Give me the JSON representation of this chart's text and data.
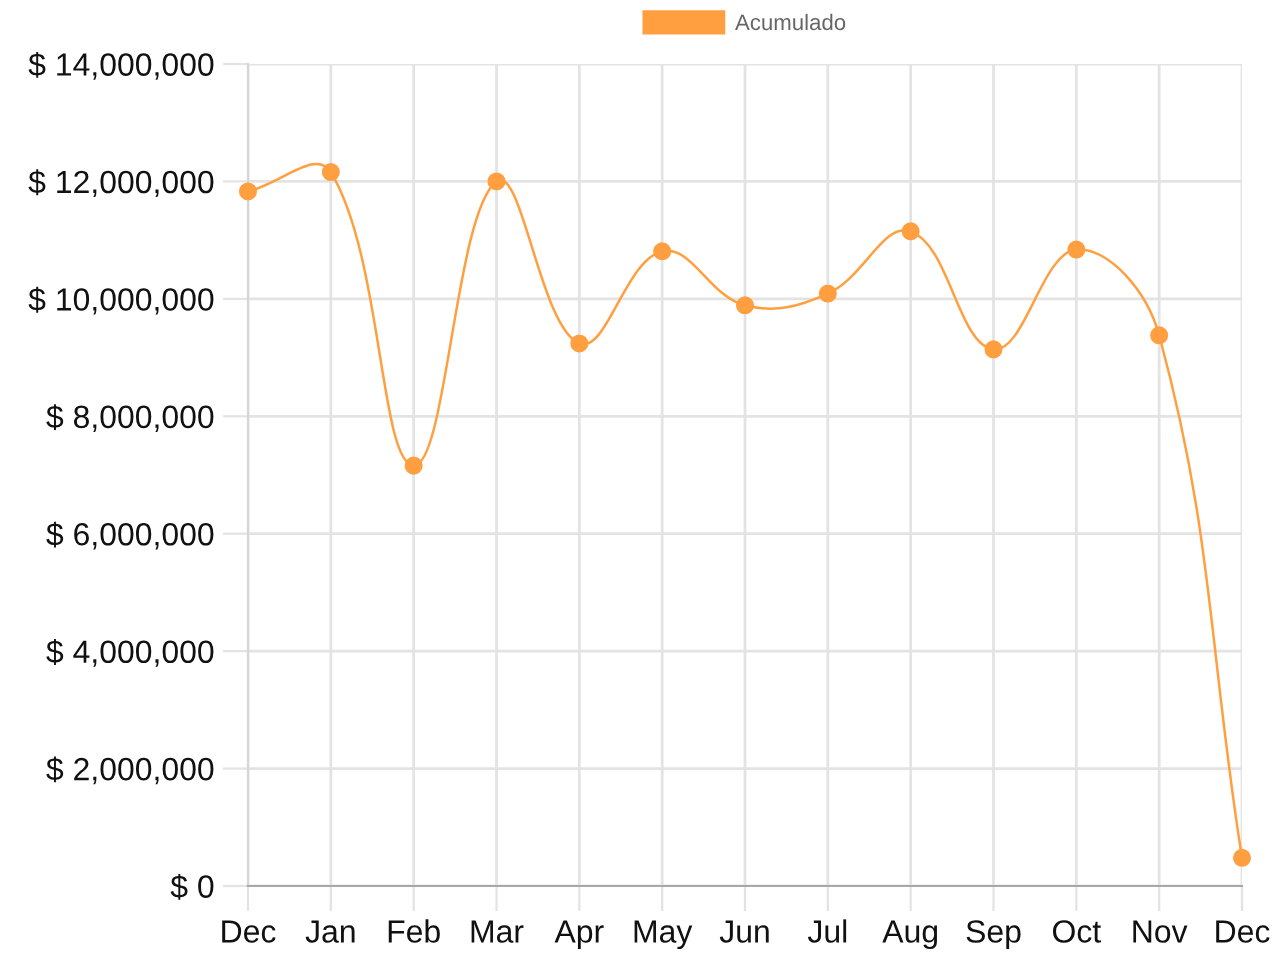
{
  "chart_data": {
    "type": "line",
    "categories": [
      "Dec",
      "Jan",
      "Feb",
      "Mar",
      "Apr",
      "May",
      "Jun",
      "Jul",
      "Aug",
      "Sep",
      "Oct",
      "Nov",
      "Dec"
    ],
    "series": [
      {
        "name": "Acumulado",
        "color": "#ff9f40",
        "values": [
          11830000,
          12160000,
          7160000,
          12000000,
          9240000,
          10810000,
          9890000,
          10090000,
          11150000,
          9140000,
          10840000,
          9380000,
          480000
        ]
      }
    ],
    "ylim": [
      0,
      14000000
    ],
    "yticks": [
      {
        "value": 0,
        "label": "$ 0"
      },
      {
        "value": 2000000,
        "label": "$ 2,000,000"
      },
      {
        "value": 4000000,
        "label": "$ 4,000,000"
      },
      {
        "value": 6000000,
        "label": "$ 6,000,000"
      },
      {
        "value": 8000000,
        "label": "$ 8,000,000"
      },
      {
        "value": 10000000,
        "label": "$ 10,000,000"
      },
      {
        "value": 12000000,
        "label": "$ 12,000,000"
      },
      {
        "value": 14000000,
        "label": "$ 14,000,000"
      }
    ],
    "grid": true,
    "legend": "top",
    "marker": "circle",
    "line_style": "solid"
  }
}
